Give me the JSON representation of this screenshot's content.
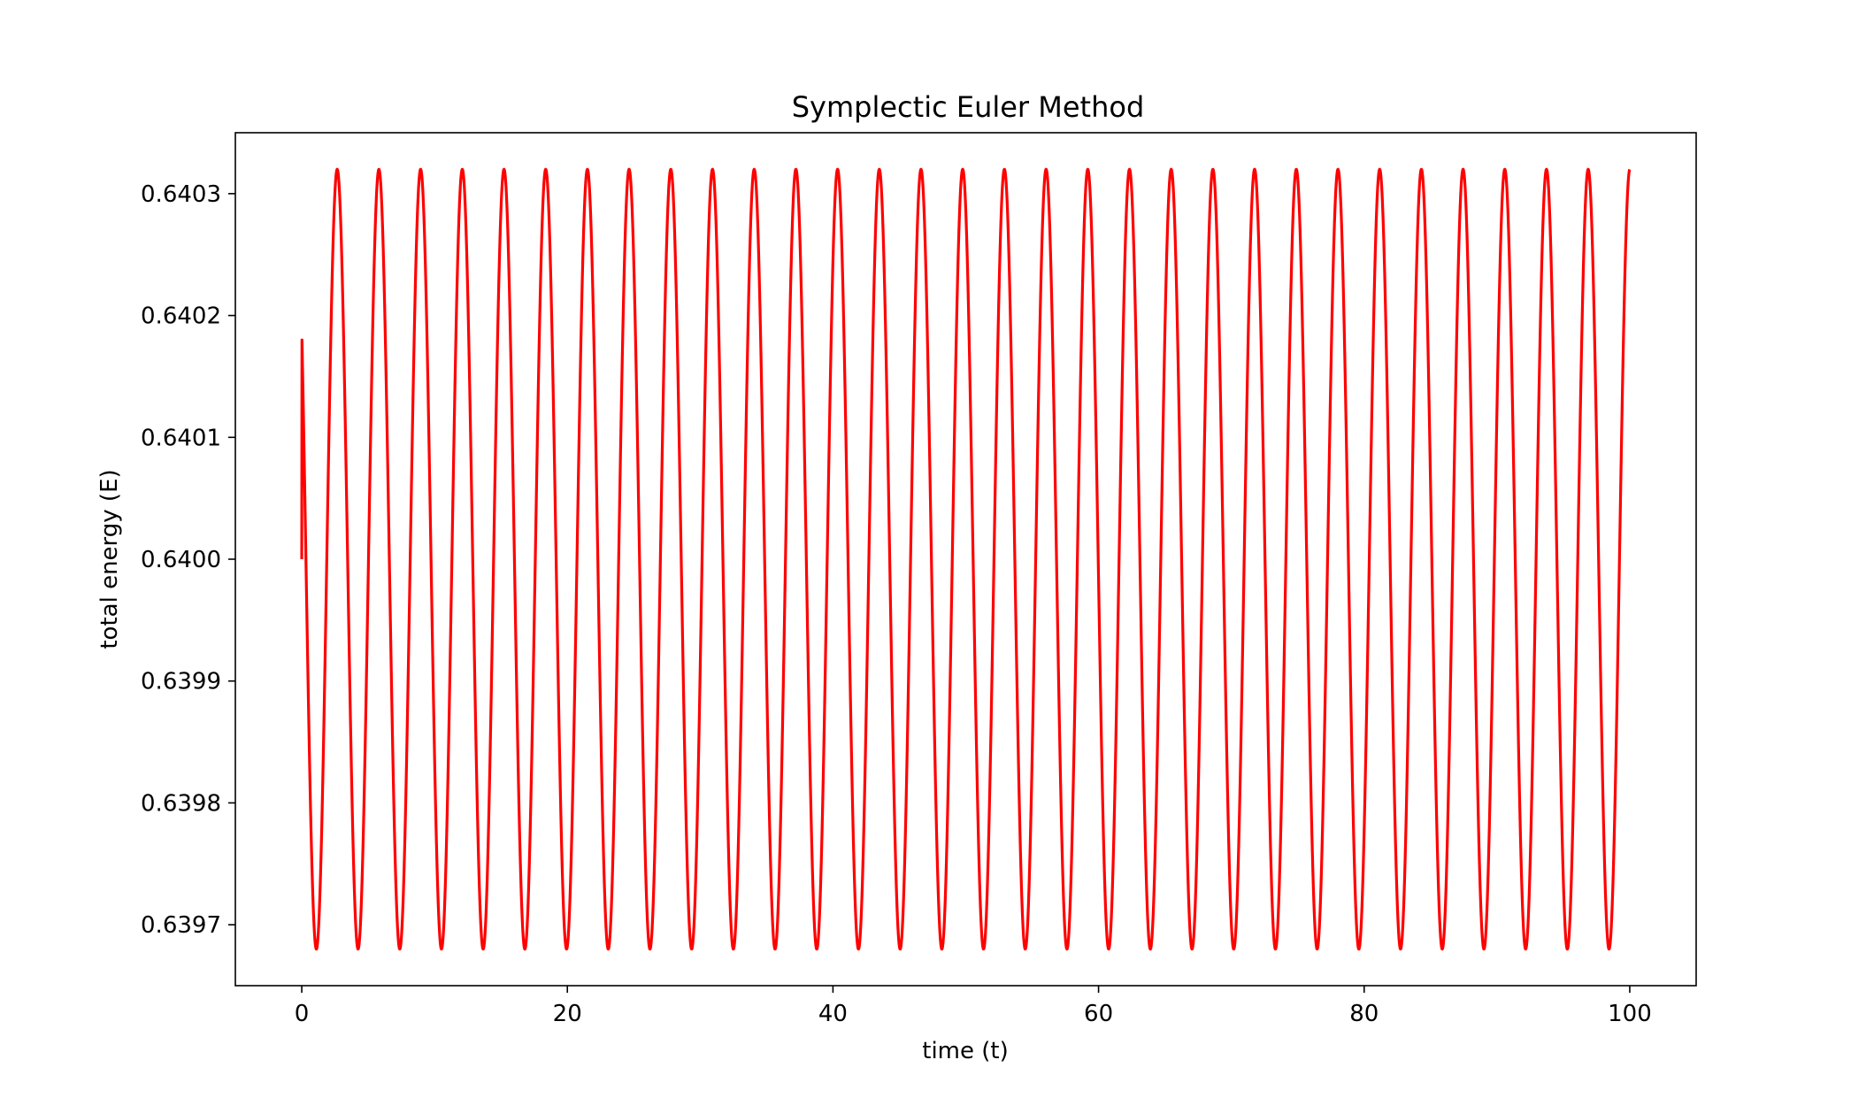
{
  "chart_data": {
    "type": "line",
    "title": "Symplectic Euler Method",
    "xlabel": "time (t)",
    "ylabel": "total energy (E)",
    "xlim": [
      -5,
      105
    ],
    "ylim": [
      0.63965,
      0.64035
    ],
    "x_ticks": [
      0,
      20,
      40,
      60,
      80,
      100
    ],
    "x_tick_labels": [
      "0",
      "20",
      "40",
      "60",
      "80",
      "100"
    ],
    "y_ticks": [
      0.6397,
      0.6398,
      0.6399,
      0.64,
      0.6401,
      0.6402,
      0.6403
    ],
    "y_tick_labels": [
      "0.6397",
      "0.6398",
      "0.6399",
      "0.6400",
      "0.6401",
      "0.6402",
      "0.6403"
    ],
    "grid": false,
    "legend": "none",
    "series": [
      {
        "color": "#ff0000",
        "curve": "periodic oscillation",
        "x_range": [
          0,
          100
        ],
        "start_value": 0.64,
        "end_value": 0.64028,
        "min_value": 0.63968,
        "max_value": 0.64032,
        "first_minimum_t": 1.1,
        "period": 3.14,
        "cycles": 32
      }
    ]
  }
}
